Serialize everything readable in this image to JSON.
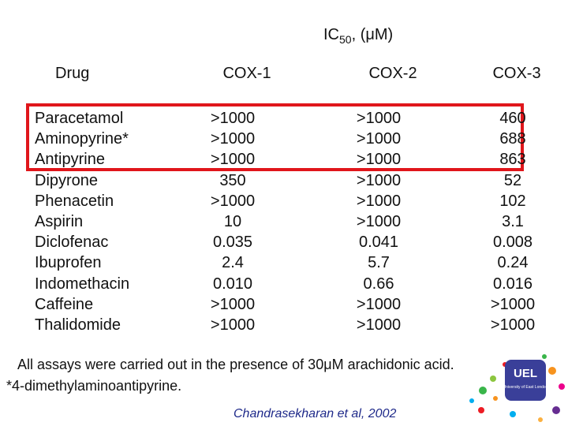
{
  "header": {
    "ic50": {
      "main": "IC",
      "sub": "50",
      "unit": ", (μM)"
    },
    "columns": [
      "Drug",
      "COX-1",
      "COX-2",
      "COX-3"
    ]
  },
  "table": {
    "rows": [
      [
        "Paracetamol",
        ">1000",
        ">1000",
        "460"
      ],
      [
        "Aminopyrine*",
        ">1000",
        ">1000",
        "688"
      ],
      [
        "Antipyrine",
        ">1000",
        ">1000",
        "863"
      ],
      [
        "Dipyrone",
        "350",
        ">1000",
        "52"
      ],
      [
        "Phenacetin",
        ">1000",
        ">1000",
        "102"
      ],
      [
        "Aspirin",
        "10",
        ">1000",
        "3.1"
      ],
      [
        "Diclofenac",
        "0.035",
        "0.041",
        "0.008"
      ],
      [
        "Ibuprofen",
        "2.4",
        "5.7",
        "0.24"
      ],
      [
        "Indomethacin",
        "0.010",
        "0.66",
        "0.016"
      ],
      [
        "Caffeine",
        ">1000",
        ">1000",
        ">1000"
      ],
      [
        "Thalidomide",
        ">1000",
        ">1000",
        ">1000"
      ]
    ]
  },
  "notes": [
    "All assays were carried out in the presence of 30μM arachidonic acid.",
    "*4-dimethylaminoantipyrine."
  ],
  "citation": "Chandrasekharan et al, 2002",
  "logo": {
    "title": "UEL",
    "subtitle": "University of East London"
  }
}
